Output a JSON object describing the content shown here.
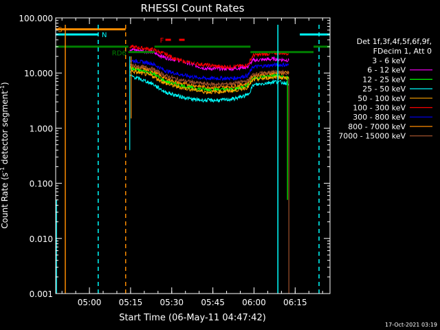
{
  "chart_data": {
    "type": "line",
    "title": "RHESSI Count Rates",
    "xlabel": "Start Time (06-May-11 04:47:42)",
    "ylabel_main": "Count Rate (s",
    "ylabel_sup": "-1",
    "ylabel_end": " detector segment",
    "ylabel_sup2": "-1",
    "ylabel_close": ")",
    "y_scale": "log",
    "ylim": [
      0.001,
      100
    ],
    "xlim_minutes": [
      0,
      100
    ],
    "x_ticks": [
      {
        "label": "05:00",
        "minutes": 12.3
      },
      {
        "label": "05:15",
        "minutes": 27.3
      },
      {
        "label": "05:30",
        "minutes": 42.3
      },
      {
        "label": "05:45",
        "minutes": 57.3
      },
      {
        "label": "06:00",
        "minutes": 72.3
      },
      {
        "label": "06:15",
        "minutes": 87.3
      }
    ],
    "y_ticks": [
      {
        "label": "100.000",
        "value": 100
      },
      {
        "label": "10.000",
        "value": 10
      },
      {
        "label": "1.000",
        "value": 1
      },
      {
        "label": "0.100",
        "value": 0.1
      },
      {
        "label": "0.010",
        "value": 0.01
      },
      {
        "label": "0.001",
        "value": 0.001
      }
    ],
    "legend": {
      "placement": "right",
      "header": [
        "Det 1f,3f,4f,5f,6f,9f,",
        "FDecim 1, Att 0"
      ],
      "entries": [
        {
          "label": "3 - 6 keV",
          "color": "#000000"
        },
        {
          "label": "6 - 12 keV",
          "color": "#ff00ff"
        },
        {
          "label": "12 - 25 keV",
          "color": "#00ff00"
        },
        {
          "label": "25 - 50 keV",
          "color": "#00ffff"
        },
        {
          "label": "50 - 100 keV",
          "color": "#ffa500"
        },
        {
          "label": "100 - 300 keV",
          "color": "#ff0000"
        },
        {
          "label": "300 - 800 keV",
          "color": "#0000ff"
        },
        {
          "label": "800 - 7000 keV",
          "color": "#ff8c00"
        },
        {
          "label": "7000 - 15000 keV",
          "color": "#a0522d"
        }
      ]
    },
    "annotations": [
      {
        "text": "S",
        "color": "#ff8c00"
      },
      {
        "text": "N",
        "color": "#00ffff"
      },
      {
        "text": "RD6",
        "color": "#008000"
      },
      {
        "text": "F",
        "color": "#ff0000"
      }
    ],
    "state_bars": [
      {
        "name": "S",
        "color": "#ff8c00",
        "value": 62,
        "x_range": [
          0,
          25.5
        ]
      },
      {
        "name": "N",
        "color": "#00ffff",
        "value": 50,
        "x_range": [
          0,
          15.5
        ]
      },
      {
        "name": "N",
        "color": "#00ffff",
        "value": 50,
        "x_range": [
          89,
          100
        ]
      },
      {
        "name": "RD6",
        "color": "#008000",
        "value": 30,
        "x_range": [
          0,
          26.5
        ]
      },
      {
        "name": "RD6",
        "color": "#008000",
        "value": 24,
        "x_range": [
          26.5,
          36
        ]
      },
      {
        "name": "RD6",
        "color": "#008000",
        "value": 30,
        "x_range": [
          36,
          71
        ]
      },
      {
        "name": "RD6",
        "color": "#008000",
        "value": 24,
        "x_range": [
          71,
          94
        ]
      },
      {
        "name": "RD6",
        "color": "#008000",
        "value": 30,
        "x_range": [
          94,
          100
        ]
      },
      {
        "name": "F",
        "color": "#ff0000",
        "value": 40,
        "x_range": [
          40,
          42
        ]
      },
      {
        "name": "F",
        "color": "#ff0000",
        "value": 40,
        "x_range": [
          45,
          47
        ]
      }
    ],
    "vertical_markers": [
      {
        "color": "#ff8c00",
        "style": "solid",
        "minutes": 3.5
      },
      {
        "color": "#00ffff",
        "style": "dashed",
        "minutes": 15.5
      },
      {
        "color": "#ff8c00",
        "style": "dashed",
        "minutes": 25.5
      },
      {
        "color": "#00ffff",
        "style": "solid",
        "minutes": 81
      },
      {
        "color": "#00ffff",
        "style": "dashed",
        "minutes": 96
      }
    ],
    "drops": [
      {
        "color": "#00ffff",
        "minutes": 27.0,
        "from": 20,
        "to": 0.4
      },
      {
        "color": "#ff8c00",
        "minutes": 27.5,
        "from": 20,
        "to": 1.5
      },
      {
        "color": "#00ffff",
        "minutes": 0.3,
        "from": 0.05,
        "to": 0.001
      },
      {
        "color": "#00ff00",
        "minutes": 84.5,
        "from": 8,
        "to": 0.05
      },
      {
        "color": "#a0522d",
        "minutes": 85,
        "from": 8,
        "to": 0.001
      }
    ],
    "series": [
      {
        "name": "3 - 6 keV",
        "color": "#000000",
        "x": [
          27,
          35,
          40,
          45,
          50,
          55,
          60,
          65,
          70,
          72,
          80,
          85
        ],
        "y": [
          28,
          25,
          20,
          22,
          15,
          13,
          12,
          12,
          14,
          19,
          20,
          20
        ]
      },
      {
        "name": "6 - 12 keV",
        "color": "#ff00ff",
        "x": [
          27,
          35,
          40,
          45,
          50,
          55,
          60,
          65,
          70,
          72,
          80,
          85
        ],
        "y": [
          27,
          24,
          19,
          17,
          14,
          12,
          12,
          12,
          13,
          17,
          18,
          17
        ]
      },
      {
        "name": "100 - 300 keV",
        "color": "#ff0000",
        "x": [
          27,
          35,
          40,
          45,
          50,
          55,
          60,
          65,
          70,
          72,
          80,
          85
        ],
        "y": [
          30,
          27,
          22,
          17,
          15,
          14,
          13,
          13,
          14,
          21,
          23,
          23
        ]
      },
      {
        "name": "300 - 800 keV",
        "color": "#0000ff",
        "x": [
          27,
          35,
          40,
          45,
          50,
          55,
          60,
          65,
          70,
          72,
          80,
          85
        ],
        "y": [
          17,
          15,
          11,
          9.5,
          8.5,
          8,
          8,
          8,
          9,
          13,
          14,
          14
        ]
      },
      {
        "name": "800 - 7000 keV",
        "color": "#ff8c00",
        "x": [
          27,
          35,
          40,
          45,
          50,
          55,
          60,
          65,
          70,
          72,
          80,
          85
        ],
        "y": [
          13,
          11,
          8,
          6.5,
          6,
          5.5,
          5.5,
          5.7,
          6.5,
          9,
          10,
          10
        ]
      },
      {
        "name": "7000 - 15000 keV",
        "color": "#a0522d",
        "x": [
          27,
          35,
          40,
          45,
          50,
          55,
          60,
          65,
          70,
          72,
          80,
          85
        ],
        "y": [
          14,
          12,
          9,
          7.5,
          6.8,
          6.3,
          6.2,
          6.5,
          7.2,
          9.5,
          10.5,
          10
        ]
      },
      {
        "name": "12 - 25 keV",
        "color": "#00ff00",
        "x": [
          27,
          35,
          40,
          45,
          50,
          55,
          60,
          65,
          70,
          72,
          80,
          85
        ],
        "y": [
          12,
          10,
          7,
          6,
          5.3,
          5,
          5,
          5,
          6,
          8,
          9,
          8
        ]
      },
      {
        "name": "50 - 100 keV",
        "color": "#ffa500",
        "x": [
          27,
          35,
          40,
          45,
          50,
          55,
          60,
          65,
          70,
          72,
          80,
          85
        ],
        "y": [
          11,
          9,
          6.5,
          5.5,
          5,
          4.5,
          4.6,
          4.8,
          5.5,
          7.5,
          8.5,
          8
        ]
      },
      {
        "name": "25 - 50 keV",
        "color": "#00ffff",
        "x": [
          27,
          35,
          40,
          45,
          50,
          55,
          60,
          65,
          70,
          72,
          80,
          85
        ],
        "y": [
          9,
          6.5,
          4.5,
          3.8,
          3.3,
          3.2,
          3.2,
          3.4,
          4,
          6,
          7,
          6.5
        ]
      }
    ]
  },
  "footer_timestamp": "17-Oct-2021 03:19"
}
